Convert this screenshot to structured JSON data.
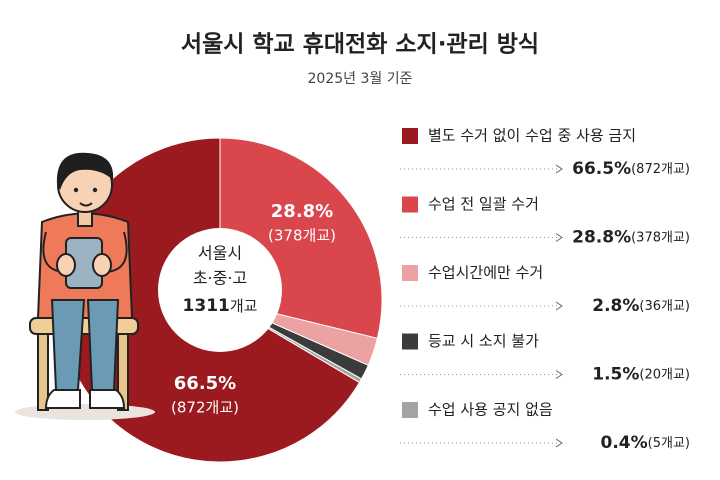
{
  "chart_data": {
    "type": "pie",
    "title": "서울시 학교 휴대전화 소지·관리 방식",
    "subtitle": "2025년 3월 기준",
    "center_lines": [
      "서울시",
      "초·중·고"
    ],
    "center_total": "1311",
    "center_unit": "개교",
    "categories": [
      "별도 수거 없이 수업 중 사용 금지",
      "수업 전 일괄 수거",
      "수업시간에만 수거",
      "등교 시 소지 불가",
      "수업 사용 공지 없음"
    ],
    "values": [
      66.5,
      28.8,
      2.8,
      1.5,
      0.4
    ],
    "value_labels": [
      "66.5%",
      "28.8%",
      "2.8%",
      "1.5%",
      "0.4%"
    ],
    "count_labels": [
      "(872개교)",
      "(378개교)",
      "(36개교)",
      "(20개교)",
      "(5개교)"
    ],
    "colors": [
      "#9b1a1f",
      "#d9474d",
      "#eca2a2",
      "#3b3b3b",
      "#a3a3a3"
    ]
  }
}
